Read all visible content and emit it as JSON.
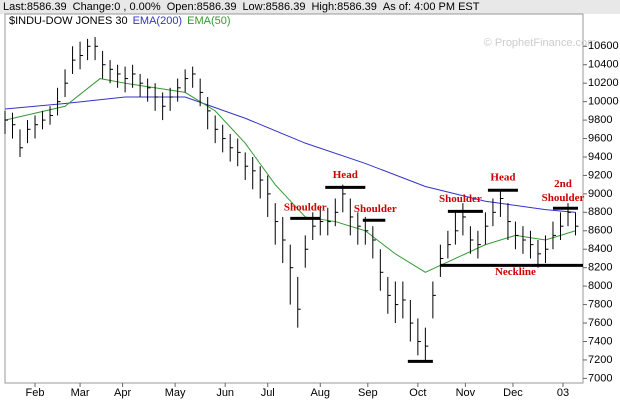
{
  "chart_data": {
    "type": "ohlc",
    "header": [
      "Last:8586.39",
      "Change:0 , 0.00%",
      "Open:8586.39",
      "Low:8586.39",
      "High:8586.39",
      "As of: 4:00 PM EST"
    ],
    "watermark": "© ProphetFinance.com",
    "xlim": [
      0,
      231
    ],
    "xticks": [
      {
        "value": 12,
        "label": "Feb"
      },
      {
        "value": 30,
        "label": "Mar"
      },
      {
        "value": 47,
        "label": "Apr"
      },
      {
        "value": 68,
        "label": "May"
      },
      {
        "value": 88,
        "label": "Jun"
      },
      {
        "value": 105,
        "label": "Jul"
      },
      {
        "value": 126,
        "label": "Aug"
      },
      {
        "value": 145,
        "label": "Sep"
      },
      {
        "value": 165,
        "label": "Oct"
      },
      {
        "value": 184,
        "label": "Nov"
      },
      {
        "value": 203,
        "label": "Dec"
      },
      {
        "value": 223,
        "label": "03"
      }
    ],
    "ylim": [
      6950,
      10950
    ],
    "yticks": [
      7000,
      7200,
      7400,
      7600,
      7800,
      8000,
      8200,
      8400,
      8600,
      8800,
      9000,
      9200,
      9400,
      9600,
      9800,
      10000,
      10200,
      10400,
      10600
    ],
    "price": {
      "name": "$INDU-DOW JONES 30",
      "color": "#000000",
      "x": [
        0,
        3,
        6,
        9,
        12,
        15,
        18,
        21,
        24,
        27,
        30,
        33,
        36,
        39,
        42,
        45,
        48,
        51,
        54,
        57,
        60,
        63,
        66,
        69,
        72,
        75,
        78,
        81,
        84,
        87,
        90,
        93,
        96,
        99,
        102,
        105,
        108,
        111,
        114,
        117,
        120,
        123,
        126,
        129,
        132,
        135,
        138,
        141,
        144,
        147,
        150,
        153,
        156,
        159,
        162,
        165,
        168,
        171,
        174,
        177,
        180,
        183,
        186,
        189,
        192,
        195,
        198,
        201,
        204,
        207,
        210,
        213,
        216,
        219,
        222,
        225,
        228
      ],
      "high": [
        9900,
        9880,
        9700,
        9800,
        9850,
        9900,
        9950,
        10150,
        10350,
        10600,
        10650,
        10680,
        10700,
        10550,
        10450,
        10400,
        10380,
        10400,
        10300,
        10250,
        10200,
        10100,
        10150,
        10250,
        10350,
        10380,
        10250,
        10050,
        9850,
        9750,
        9650,
        9600,
        9450,
        9400,
        9300,
        9200,
        8900,
        8750,
        8450,
        8100,
        8550,
        8800,
        8850,
        8850,
        8950,
        9100,
        8950,
        8800,
        8750,
        8650,
        8400,
        8100,
        8050,
        8050,
        7850,
        7650,
        7550,
        8050,
        8450,
        8600,
        8800,
        8900,
        8650,
        8600,
        8800,
        8950,
        9050,
        8900,
        8700,
        8650,
        8600,
        8500,
        8550,
        8700,
        8800,
        8900,
        8800
      ],
      "low": [
        9650,
        9600,
        9400,
        9550,
        9600,
        9700,
        9750,
        9850,
        10050,
        10300,
        10350,
        10450,
        10450,
        10250,
        10200,
        10150,
        10100,
        10150,
        10050,
        10000,
        9900,
        9800,
        9900,
        10000,
        10100,
        10150,
        9950,
        9700,
        9550,
        9450,
        9350,
        9300,
        9150,
        9050,
        8950,
        8750,
        8450,
        8250,
        7800,
        7550,
        8200,
        8500,
        8550,
        8550,
        8650,
        8800,
        8550,
        8450,
        8450,
        8300,
        7950,
        7700,
        7600,
        7650,
        7400,
        7250,
        7200,
        7650,
        8100,
        8300,
        8450,
        8550,
        8350,
        8300,
        8450,
        8650,
        8750,
        8500,
        8400,
        8350,
        8300,
        8200,
        8250,
        8400,
        8500,
        8650,
        8550
      ],
      "close": [
        9800,
        9750,
        9500,
        9700,
        9750,
        9800,
        9850,
        10000,
        10200,
        10450,
        10500,
        10600,
        10600,
        10400,
        10350,
        10300,
        10250,
        10300,
        10200,
        10150,
        10050,
        9950,
        10050,
        10150,
        10250,
        10300,
        10100,
        9900,
        9700,
        9600,
        9500,
        9450,
        9300,
        9250,
        9150,
        9000,
        8700,
        8500,
        8200,
        7750,
        8400,
        8650,
        8700,
        8700,
        8800,
        9000,
        8750,
        8650,
        8600,
        8500,
        8150,
        7900,
        7800,
        7850,
        7600,
        7400,
        7350,
        7900,
        8300,
        8450,
        8600,
        8750,
        8500,
        8450,
        8650,
        8800,
        8950,
        8700,
        8550,
        8500,
        8450,
        8350,
        8400,
        8550,
        8650,
        8800,
        8650
      ]
    },
    "series": [
      {
        "name": "EMA(200)",
        "color": "#3333cc",
        "x": [
          0,
          24,
          48,
          72,
          96,
          120,
          144,
          168,
          192,
          216,
          228
        ],
        "values": [
          9920,
          9980,
          10050,
          10050,
          9820,
          9550,
          9330,
          9080,
          8920,
          8830,
          8800
        ]
      },
      {
        "name": "EMA(50)",
        "color": "#339933",
        "x": [
          0,
          24,
          38,
          48,
          72,
          84,
          96,
          108,
          120,
          132,
          144,
          156,
          168,
          180,
          192,
          204,
          216,
          228
        ],
        "values": [
          9800,
          9950,
          10250,
          10200,
          10100,
          9900,
          9550,
          9100,
          8750,
          8700,
          8600,
          8350,
          8150,
          8300,
          8450,
          8550,
          8500,
          8600
        ]
      }
    ],
    "annotations": [
      {
        "text": "Shoulder",
        "x": 120,
        "y": 8850
      },
      {
        "text": "Head",
        "x": 136,
        "y": 9200
      },
      {
        "text": "Shoulder",
        "x": 148,
        "y": 8830
      },
      {
        "text": "Shoulder",
        "x": 182,
        "y": 8940
      },
      {
        "text": "Head",
        "x": 199,
        "y": 9170
      },
      {
        "text": "2nd",
        "x": 223,
        "y": 9100
      },
      {
        "text": "Shoulder",
        "x": 223,
        "y": 8950
      },
      {
        "text": "Neckline",
        "x": 204,
        "y": 8150
      }
    ],
    "levels": [
      {
        "y": 8735,
        "x": [
          114,
          126
        ]
      },
      {
        "y": 9071,
        "x": [
          128,
          144
        ]
      },
      {
        "y": 8714,
        "x": [
          143,
          152
        ]
      },
      {
        "y": 8225,
        "x": [
          174,
          231
        ]
      },
      {
        "y": 7184,
        "x": [
          161,
          171
        ]
      },
      {
        "y": 8811,
        "x": [
          177,
          191
        ]
      },
      {
        "y": 9039,
        "x": [
          193,
          205
        ]
      },
      {
        "y": 8844,
        "x": [
          219,
          229
        ]
      }
    ]
  }
}
